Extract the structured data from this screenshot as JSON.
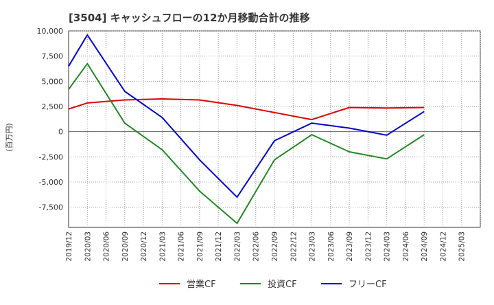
{
  "chart_data": {
    "type": "line",
    "title": "[3504]  キャッシュフローの12か月移動合計の推移",
    "ylabel": "(百万円)",
    "xlabel": "",
    "ylim": [
      -9500,
      10000
    ],
    "yticks": [
      10000,
      7500,
      5000,
      2500,
      0,
      -2500,
      -5000,
      -7500
    ],
    "ytick_labels": [
      "10,000",
      "7,500",
      "5,000",
      "2,500",
      "0",
      "-2,500",
      "-5,000",
      "-7,500"
    ],
    "categories": [
      "2019/12",
      "2020/03",
      "2020/06",
      "2020/09",
      "2020/12",
      "2021/03",
      "2021/06",
      "2021/09",
      "2021/12",
      "2022/03",
      "2022/06",
      "2022/09",
      "2022/12",
      "2023/03",
      "2023/06",
      "2023/09",
      "2023/12",
      "2024/03",
      "2024/06",
      "2024/09",
      "2024/12",
      "2025/03"
    ],
    "grid": true,
    "legend_position": "bottom",
    "series": [
      {
        "name": "営業CF",
        "color": "#dd0000",
        "points": [
          {
            "x": "2019/12",
            "y": 2250
          },
          {
            "x": "2020/03",
            "y": 2850
          },
          {
            "x": "2020/09",
            "y": 3150
          },
          {
            "x": "2021/03",
            "y": 3250
          },
          {
            "x": "2021/09",
            "y": 3150
          },
          {
            "x": "2022/03",
            "y": 2600
          },
          {
            "x": "2022/09",
            "y": 1900
          },
          {
            "x": "2023/03",
            "y": 1200
          },
          {
            "x": "2023/09",
            "y": 2400
          },
          {
            "x": "2024/03",
            "y": 2350
          },
          {
            "x": "2024/09",
            "y": 2400
          }
        ]
      },
      {
        "name": "投資CF",
        "color": "#228822",
        "points": [
          {
            "x": "2019/12",
            "y": 4200
          },
          {
            "x": "2020/03",
            "y": 6750
          },
          {
            "x": "2020/09",
            "y": 850
          },
          {
            "x": "2021/03",
            "y": -1800
          },
          {
            "x": "2021/09",
            "y": -5900
          },
          {
            "x": "2022/03",
            "y": -9100
          },
          {
            "x": "2022/09",
            "y": -2800
          },
          {
            "x": "2023/03",
            "y": -300
          },
          {
            "x": "2023/09",
            "y": -2000
          },
          {
            "x": "2024/03",
            "y": -2700
          },
          {
            "x": "2024/09",
            "y": -300
          }
        ]
      },
      {
        "name": "フリーCF",
        "color": "#0000cc",
        "points": [
          {
            "x": "2019/12",
            "y": 6500
          },
          {
            "x": "2020/03",
            "y": 9600
          },
          {
            "x": "2020/09",
            "y": 4000
          },
          {
            "x": "2021/03",
            "y": 1400
          },
          {
            "x": "2021/09",
            "y": -2800
          },
          {
            "x": "2022/03",
            "y": -6500
          },
          {
            "x": "2022/09",
            "y": -900
          },
          {
            "x": "2023/03",
            "y": 850
          },
          {
            "x": "2023/09",
            "y": 350
          },
          {
            "x": "2024/03",
            "y": -350
          },
          {
            "x": "2024/09",
            "y": 2000
          }
        ]
      }
    ]
  }
}
